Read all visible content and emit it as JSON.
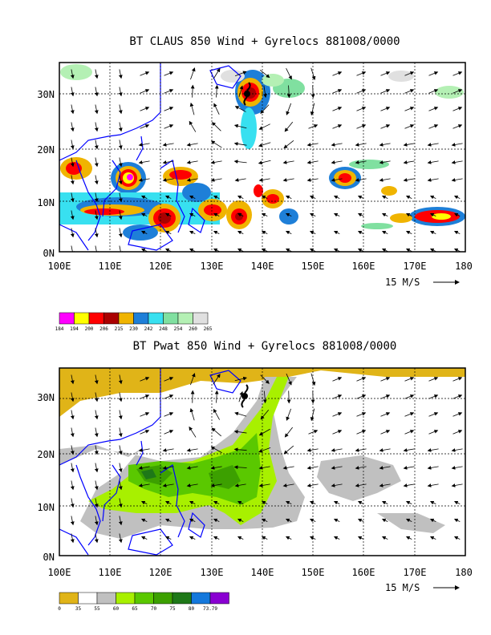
{
  "panels": [
    {
      "id": "claus",
      "title": "BT CLAUS 850 Wind + Gyrelocs 881008/0000",
      "lon_labels": [
        "100E",
        "110E",
        "120E",
        "130E",
        "140E",
        "150E",
        "160E",
        "170E",
        "180"
      ],
      "lat_labels": [
        "0N",
        "10N",
        "20N",
        "30N"
      ],
      "reference_vector": "15 M/S",
      "legend": {
        "labels": [
          "184",
          "194",
          "200",
          "206",
          "215",
          "230",
          "242",
          "248",
          "254",
          "260",
          "265"
        ],
        "colors": [
          "#ff00ff",
          "#ffff00",
          "#ff0000",
          "#aa0000",
          "#f0b400",
          "#1e7fd8",
          "#38e0f0",
          "#80e0a0",
          "#b4f0b4",
          "#e0e0e0"
        ]
      }
    },
    {
      "id": "pwat",
      "title": "BT Pwat 850 Wind + Gyrelocs 881008/0000",
      "lon_labels": [
        "100E",
        "110E",
        "120E",
        "130E",
        "140E",
        "150E",
        "160E",
        "170E",
        "180"
      ],
      "lat_labels": [
        "0N",
        "10N",
        "20N",
        "30N"
      ],
      "reference_vector": "15 M/S",
      "legend": {
        "labels": [
          "0",
          "35",
          "55",
          "60",
          "65",
          "70",
          "75",
          "80",
          "73.79"
        ],
        "colors": [
          "#e0b418",
          "#ffffff",
          "#c0c0c0",
          "#a8f000",
          "#5ac800",
          "#3ca000",
          "#1e7818",
          "#1478dc",
          "#8a00d2"
        ]
      }
    }
  ]
}
